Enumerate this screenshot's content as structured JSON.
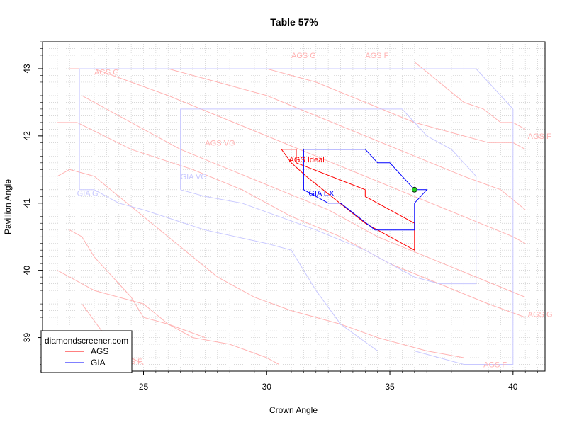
{
  "chart_data": {
    "type": "line",
    "title": "Table 57%",
    "xlabel": "Crown Angle",
    "ylabel": "Pavillion Angle",
    "xlim": [
      20.9,
      41.3
    ],
    "ylim": [
      38.5,
      43.4
    ],
    "xticks": [
      25,
      30,
      35,
      40
    ],
    "yticks": [
      39,
      40,
      41,
      42,
      43
    ],
    "grid": "dotted-minor",
    "legend": {
      "title": "diamondscreener.com",
      "position": "bottom-left",
      "entries": [
        {
          "label": "AGS",
          "color": "#ff0000"
        },
        {
          "label": "GIA",
          "color": "#0000ff"
        }
      ]
    },
    "marker": {
      "x": 36.0,
      "y": 41.2,
      "color": "#22cc22"
    },
    "series": [
      {
        "name": "AGS",
        "color": "#ff0000",
        "strong": true,
        "segments": [
          [
            [
              30.6,
              41.8
            ],
            [
              31.2,
              41.8
            ],
            [
              31.2,
              41.6
            ],
            [
              34.0,
              41.2
            ],
            [
              34.0,
              41.1
            ],
            [
              36.0,
              40.7
            ],
            [
              36.0,
              40.3
            ],
            [
              34.0,
              40.7
            ],
            [
              31.6,
              41.4
            ],
            [
              31.0,
              41.6
            ],
            [
              30.6,
              41.8
            ]
          ]
        ]
      },
      {
        "name": "GIA",
        "color": "#0000ff",
        "strong": true,
        "segments": [
          [
            [
              31.5,
              41.8
            ],
            [
              34.0,
              41.8
            ],
            [
              34.5,
              41.6
            ],
            [
              35.0,
              41.6
            ],
            [
              36.0,
              41.2
            ],
            [
              36.5,
              41.2
            ],
            [
              36.0,
              41.0
            ],
            [
              36.0,
              40.6
            ],
            [
              34.4,
              40.6
            ],
            [
              33.0,
              41.0
            ],
            [
              32.5,
              41.0
            ],
            [
              31.5,
              41.2
            ],
            [
              31.5,
              41.8
            ]
          ]
        ]
      },
      {
        "name": "AGS-faint",
        "color": "#ffb3b3",
        "strong": false,
        "segments": [
          [
            [
              21.5,
              42.2
            ],
            [
              22.3,
              42.2
            ],
            [
              24.5,
              41.8
            ],
            [
              27.0,
              41.5
            ],
            [
              29.0,
              41.2
            ],
            [
              31.0,
              40.8
            ],
            [
              33.0,
              40.5
            ],
            [
              35.0,
              40.1
            ],
            [
              37.0,
              39.8
            ],
            [
              39.0,
              39.5
            ],
            [
              40.5,
              39.3
            ]
          ],
          [
            [
              21.5,
              41.4
            ],
            [
              22.0,
              41.5
            ],
            [
              23.0,
              41.4
            ],
            [
              24.0,
              41.1
            ],
            [
              25.0,
              40.8
            ],
            [
              26.0,
              40.5
            ],
            [
              27.0,
              40.2
            ],
            [
              28.0,
              39.9
            ],
            [
              29.5,
              39.6
            ],
            [
              31.0,
              39.4
            ],
            [
              33.0,
              39.2
            ],
            [
              34.5,
              39.0
            ],
            [
              36.5,
              38.8
            ],
            [
              38.0,
              38.7
            ]
          ],
          [
            [
              22.5,
              42.6
            ],
            [
              24.5,
              42.2
            ],
            [
              26.5,
              41.8
            ],
            [
              28.5,
              41.5
            ],
            [
              30.5,
              41.2
            ],
            [
              32.5,
              40.9
            ],
            [
              34.5,
              40.5
            ],
            [
              36.5,
              40.2
            ],
            [
              38.5,
              39.9
            ],
            [
              40.5,
              39.6
            ]
          ],
          [
            [
              22.0,
              43.0
            ],
            [
              23.0,
              43.0
            ],
            [
              24.5,
              42.8
            ],
            [
              26.0,
              42.6
            ],
            [
              28.0,
              42.3
            ],
            [
              30.0,
              42.0
            ],
            [
              32.0,
              41.7
            ],
            [
              34.0,
              41.4
            ],
            [
              36.0,
              41.1
            ],
            [
              38.0,
              40.8
            ],
            [
              40.0,
              40.5
            ],
            [
              40.5,
              40.4
            ]
          ],
          [
            [
              24.0,
              43.0
            ],
            [
              26.0,
              43.0
            ],
            [
              28.0,
              42.8
            ],
            [
              30.0,
              42.6
            ],
            [
              32.0,
              42.3
            ],
            [
              34.0,
              42.0
            ],
            [
              36.0,
              41.7
            ],
            [
              38.0,
              41.4
            ],
            [
              39.5,
              41.2
            ],
            [
              40.5,
              40.9
            ]
          ],
          [
            [
              28.0,
              43.0
            ],
            [
              30.0,
              43.0
            ],
            [
              32.0,
              42.8
            ],
            [
              34.0,
              42.5
            ],
            [
              36.0,
              42.2
            ],
            [
              38.0,
              42.0
            ],
            [
              39.0,
              41.9
            ],
            [
              40.0,
              41.9
            ],
            [
              40.5,
              41.8
            ]
          ],
          [
            [
              36.0,
              43.1
            ],
            [
              37.0,
              42.8
            ],
            [
              38.0,
              42.5
            ],
            [
              38.8,
              42.4
            ],
            [
              39.5,
              42.2
            ],
            [
              40.0,
              42.2
            ],
            [
              40.5,
              42.1
            ]
          ],
          [
            [
              21.5,
              40.0
            ],
            [
              22.0,
              39.9
            ],
            [
              23.0,
              39.7
            ],
            [
              24.0,
              39.6
            ],
            [
              25.0,
              39.5
            ],
            [
              26.0,
              39.2
            ],
            [
              27.0,
              39.0
            ],
            [
              28.5,
              38.9
            ],
            [
              30.0,
              38.7
            ],
            [
              30.5,
              38.6
            ]
          ],
          [
            [
              22.5,
              39.5
            ],
            [
              23.5,
              39.0
            ],
            [
              24.5,
              38.7
            ],
            [
              25.0,
              38.6
            ]
          ],
          [
            [
              22.0,
              40.6
            ],
            [
              22.5,
              40.5
            ],
            [
              23.0,
              40.2
            ],
            [
              23.5,
              40.0
            ],
            [
              24.0,
              39.8
            ],
            [
              24.5,
              39.6
            ],
            [
              25.0,
              39.3
            ],
            [
              26.0,
              39.2
            ],
            [
              27.5,
              39.0
            ]
          ]
        ]
      },
      {
        "name": "GIA-faint",
        "color": "#c8c8ff",
        "strong": false,
        "segments": [
          [
            [
              22.4,
              41.2
            ],
            [
              22.4,
              43.0
            ],
            [
              38.5,
              43.0
            ],
            [
              40.0,
              42.4
            ],
            [
              40.0,
              38.6
            ],
            [
              38.0,
              38.6
            ],
            [
              36.0,
              38.8
            ],
            [
              34.5,
              38.8
            ],
            [
              33.0,
              39.2
            ],
            [
              32.0,
              39.7
            ],
            [
              31.0,
              40.3
            ],
            [
              30.0,
              40.4
            ],
            [
              27.5,
              40.6
            ],
            [
              25.0,
              40.9
            ],
            [
              24.0,
              41.0
            ],
            [
              23.0,
              41.2
            ],
            [
              22.4,
              41.2
            ]
          ],
          [
            [
              26.5,
              41.2
            ],
            [
              26.5,
              42.4
            ],
            [
              35.5,
              42.4
            ],
            [
              36.5,
              42.0
            ],
            [
              37.5,
              41.8
            ],
            [
              38.0,
              41.6
            ],
            [
              38.5,
              41.4
            ],
            [
              38.5,
              39.8
            ],
            [
              37.0,
              39.8
            ],
            [
              36.0,
              39.9
            ],
            [
              35.0,
              40.1
            ],
            [
              34.0,
              40.3
            ],
            [
              32.0,
              40.6
            ],
            [
              30.5,
              40.8
            ],
            [
              29.0,
              41.0
            ],
            [
              27.5,
              41.1
            ],
            [
              26.5,
              41.2
            ]
          ]
        ]
      }
    ],
    "annotations": [
      {
        "text": "AGS Ideal",
        "x": 30.9,
        "y": 41.65,
        "color": "#ff0000"
      },
      {
        "text": "GIA EX",
        "x": 31.7,
        "y": 41.15,
        "color": "#0000ff"
      },
      {
        "text": "AGS G",
        "x": 23.0,
        "y": 42.95,
        "color": "#ffb3b3"
      },
      {
        "text": "AGS G",
        "x": 31.0,
        "y": 43.2,
        "color": "#ffb3b3"
      },
      {
        "text": "AGS F",
        "x": 34.0,
        "y": 43.2,
        "color": "#ffb3b3"
      },
      {
        "text": "AGS F",
        "x": 40.6,
        "y": 42.0,
        "color": "#ffb3b3"
      },
      {
        "text": "AGS VG",
        "x": 27.5,
        "y": 41.9,
        "color": "#ffb3b3"
      },
      {
        "text": "AGS G",
        "x": 40.6,
        "y": 39.35,
        "color": "#ffb3b3"
      },
      {
        "text": "AGS F",
        "x": 38.8,
        "y": 38.6,
        "color": "#ffb3b3"
      },
      {
        "text": "AGS F",
        "x": 24.0,
        "y": 38.65,
        "color": "#ffb3b3"
      },
      {
        "text": "GIA G",
        "x": 22.3,
        "y": 41.15,
        "color": "#c8c8ff"
      },
      {
        "text": "GIA VG",
        "x": 26.5,
        "y": 41.4,
        "color": "#c8c8ff"
      }
    ]
  }
}
